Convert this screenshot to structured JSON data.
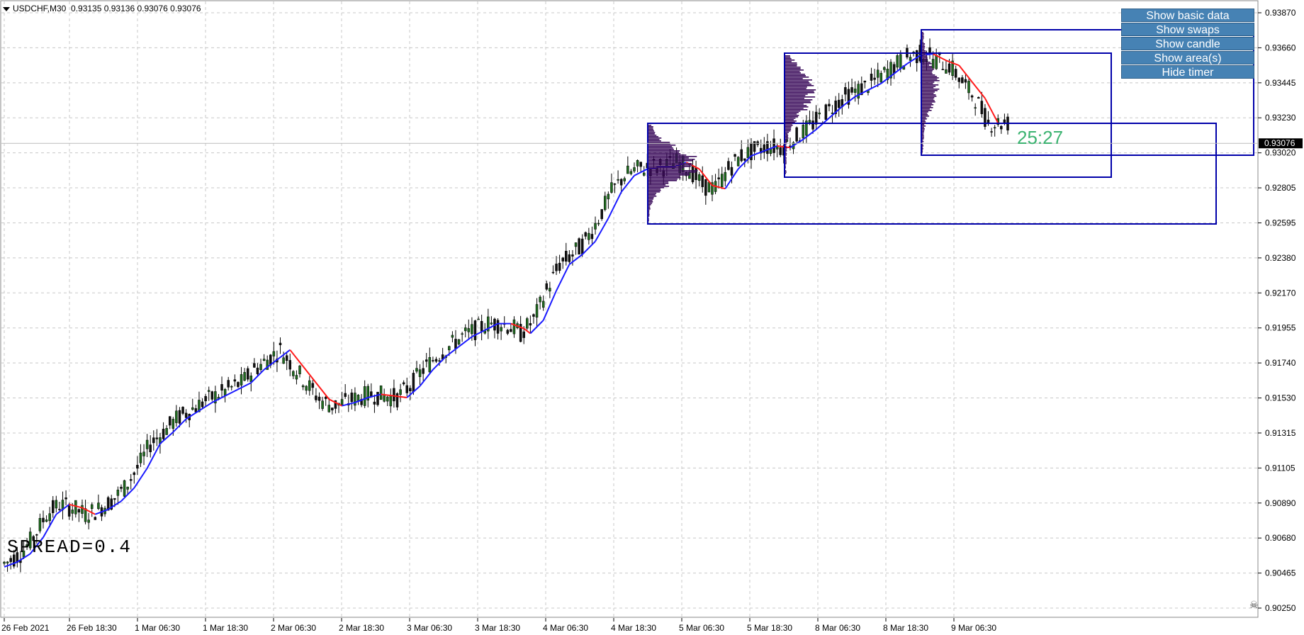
{
  "header": {
    "symbol": "USDCHF,M30",
    "ohlc": "0.93135 0.93136 0.93076 0.93076"
  },
  "buttons": [
    {
      "label": "Show basic data"
    },
    {
      "label": "Show swaps"
    },
    {
      "label": "Show candle"
    },
    {
      "label": "Show area(s)"
    },
    {
      "label": "Hide timer"
    }
  ],
  "spread_label": "SPREAD=0.4",
  "timer_label": "25:27",
  "current_price": "0.93076",
  "colors": {
    "bull_candle": "#1f6b1f",
    "bear_candle": "#111111",
    "ma_up": "#1a1aff",
    "ma_down": "#ff1a1a",
    "area_box": "#0000aa",
    "volume_profile": "#3a0a5a",
    "grid": "#c8c8c8",
    "timer": "#3cb371",
    "button_bg": "#4682b4"
  },
  "chart_data": {
    "type": "candlestick",
    "instrument": "USDCHF",
    "timeframe": "M30",
    "y_ticks": [
      "0.93870",
      "0.93660",
      "0.93445",
      "0.93230",
      "0.93020",
      "0.92805",
      "0.92595",
      "0.92380",
      "0.92170",
      "0.91955",
      "0.91740",
      "0.91530",
      "0.91315",
      "0.91105",
      "0.90890",
      "0.90680",
      "0.90465",
      "0.90250"
    ],
    "x_ticks": [
      "26 Feb 2021",
      "26 Feb 18:30",
      "1 Mar 06:30",
      "1 Mar 18:30",
      "2 Mar 06:30",
      "2 Mar 18:30",
      "3 Mar 06:30",
      "3 Mar 18:30",
      "4 Mar 06:30",
      "4 Mar 18:30",
      "5 Mar 06:30",
      "5 Mar 18:30",
      "8 Mar 06:30",
      "8 Mar 18:30",
      "9 Mar 06:30"
    ],
    "ylim": [
      0.9021,
      0.939
    ],
    "ma_path": [
      [
        0,
        0.905
      ],
      [
        4,
        0.9053
      ],
      [
        8,
        0.9058
      ],
      [
        12,
        0.9068
      ],
      [
        16,
        0.9082
      ],
      [
        20,
        0.9088
      ],
      [
        24,
        0.9086
      ],
      [
        28,
        0.9082
      ],
      [
        32,
        0.9085
      ],
      [
        36,
        0.909
      ],
      [
        40,
        0.9098
      ],
      [
        44,
        0.911
      ],
      [
        48,
        0.9125
      ],
      [
        52,
        0.9132
      ],
      [
        56,
        0.914
      ],
      [
        60,
        0.9145
      ],
      [
        64,
        0.915
      ],
      [
        68,
        0.9154
      ],
      [
        72,
        0.9158
      ],
      [
        76,
        0.9162
      ],
      [
        80,
        0.917
      ],
      [
        84,
        0.9176
      ],
      [
        88,
        0.9182
      ],
      [
        92,
        0.9172
      ],
      [
        96,
        0.9162
      ],
      [
        100,
        0.9152
      ],
      [
        104,
        0.9148
      ],
      [
        108,
        0.915
      ],
      [
        112,
        0.9153
      ],
      [
        116,
        0.9155
      ],
      [
        120,
        0.9154
      ],
      [
        124,
        0.9153
      ],
      [
        128,
        0.916
      ],
      [
        132,
        0.917
      ],
      [
        136,
        0.9178
      ],
      [
        140,
        0.9184
      ],
      [
        144,
        0.919
      ],
      [
        148,
        0.9194
      ],
      [
        152,
        0.9198
      ],
      [
        156,
        0.9198
      ],
      [
        160,
        0.9195
      ],
      [
        162,
        0.9192
      ],
      [
        166,
        0.92
      ],
      [
        170,
        0.9218
      ],
      [
        174,
        0.9234
      ],
      [
        178,
        0.924
      ],
      [
        182,
        0.9248
      ],
      [
        186,
        0.9262
      ],
      [
        190,
        0.9278
      ],
      [
        194,
        0.9288
      ],
      [
        198,
        0.9292
      ],
      [
        202,
        0.9293
      ],
      [
        206,
        0.9293
      ],
      [
        210,
        0.9296
      ],
      [
        214,
        0.9292
      ],
      [
        218,
        0.9282
      ],
      [
        222,
        0.928
      ],
      [
        226,
        0.9292
      ],
      [
        230,
        0.93
      ],
      [
        234,
        0.9303
      ],
      [
        238,
        0.9306
      ],
      [
        242,
        0.9305
      ],
      [
        246,
        0.931
      ],
      [
        250,
        0.9316
      ],
      [
        254,
        0.9323
      ],
      [
        258,
        0.933
      ],
      [
        262,
        0.9336
      ],
      [
        266,
        0.934
      ],
      [
        270,
        0.9344
      ],
      [
        274,
        0.935
      ],
      [
        278,
        0.9356
      ],
      [
        282,
        0.9361
      ],
      [
        286,
        0.9362
      ],
      [
        290,
        0.9358
      ],
      [
        294,
        0.9355
      ],
      [
        298,
        0.9345
      ],
      [
        302,
        0.9335
      ],
      [
        306,
        0.932
      ]
    ],
    "last_price": 0.93076
  }
}
